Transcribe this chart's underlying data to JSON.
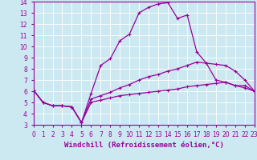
{
  "xlabel": "Windchill (Refroidissement éolien,°C)",
  "bg_color": "#cce8f0",
  "line_color": "#990099",
  "grid_color": "#ffffff",
  "xlim": [
    0,
    23
  ],
  "ylim": [
    3,
    14
  ],
  "xticks": [
    0,
    1,
    2,
    3,
    4,
    5,
    6,
    7,
    8,
    9,
    10,
    11,
    12,
    13,
    14,
    15,
    16,
    17,
    18,
    19,
    20,
    21,
    22,
    23
  ],
  "yticks": [
    3,
    4,
    5,
    6,
    7,
    8,
    9,
    10,
    11,
    12,
    13,
    14
  ],
  "line1_x": [
    0,
    1,
    2,
    3,
    4,
    5,
    6,
    7,
    8,
    9,
    10,
    11,
    12,
    13,
    14,
    15,
    16,
    17,
    18,
    19,
    20,
    21,
    22,
    23
  ],
  "line1_y": [
    6.1,
    5.0,
    4.7,
    4.7,
    4.6,
    3.2,
    5.8,
    8.3,
    8.9,
    10.5,
    11.1,
    13.0,
    13.5,
    13.8,
    13.9,
    12.5,
    12.8,
    9.5,
    8.5,
    7.0,
    6.8,
    6.5,
    6.5,
    6.0
  ],
  "line2_x": [
    0,
    1,
    2,
    3,
    4,
    5,
    6,
    7,
    8,
    9,
    10,
    11,
    12,
    13,
    14,
    15,
    16,
    17,
    18,
    19,
    20,
    21,
    22,
    23
  ],
  "line2_y": [
    6.1,
    5.0,
    4.7,
    4.7,
    4.6,
    3.2,
    5.3,
    5.6,
    5.9,
    6.3,
    6.6,
    7.0,
    7.3,
    7.5,
    7.8,
    8.0,
    8.3,
    8.6,
    8.5,
    8.4,
    8.3,
    7.8,
    7.0,
    6.0
  ],
  "line3_x": [
    0,
    1,
    2,
    3,
    4,
    5,
    6,
    7,
    8,
    9,
    10,
    11,
    12,
    13,
    14,
    15,
    16,
    17,
    18,
    19,
    20,
    21,
    22,
    23
  ],
  "line3_y": [
    6.1,
    5.0,
    4.7,
    4.7,
    4.6,
    3.2,
    5.0,
    5.2,
    5.4,
    5.6,
    5.7,
    5.8,
    5.9,
    6.0,
    6.1,
    6.2,
    6.4,
    6.5,
    6.6,
    6.7,
    6.8,
    6.5,
    6.3,
    6.0
  ],
  "marker": "+",
  "markersize": 3,
  "markeredgewidth": 0.8,
  "linewidth": 0.9,
  "font_color": "#990099",
  "axis_label_fontsize": 6.5,
  "tick_fontsize": 5.5
}
